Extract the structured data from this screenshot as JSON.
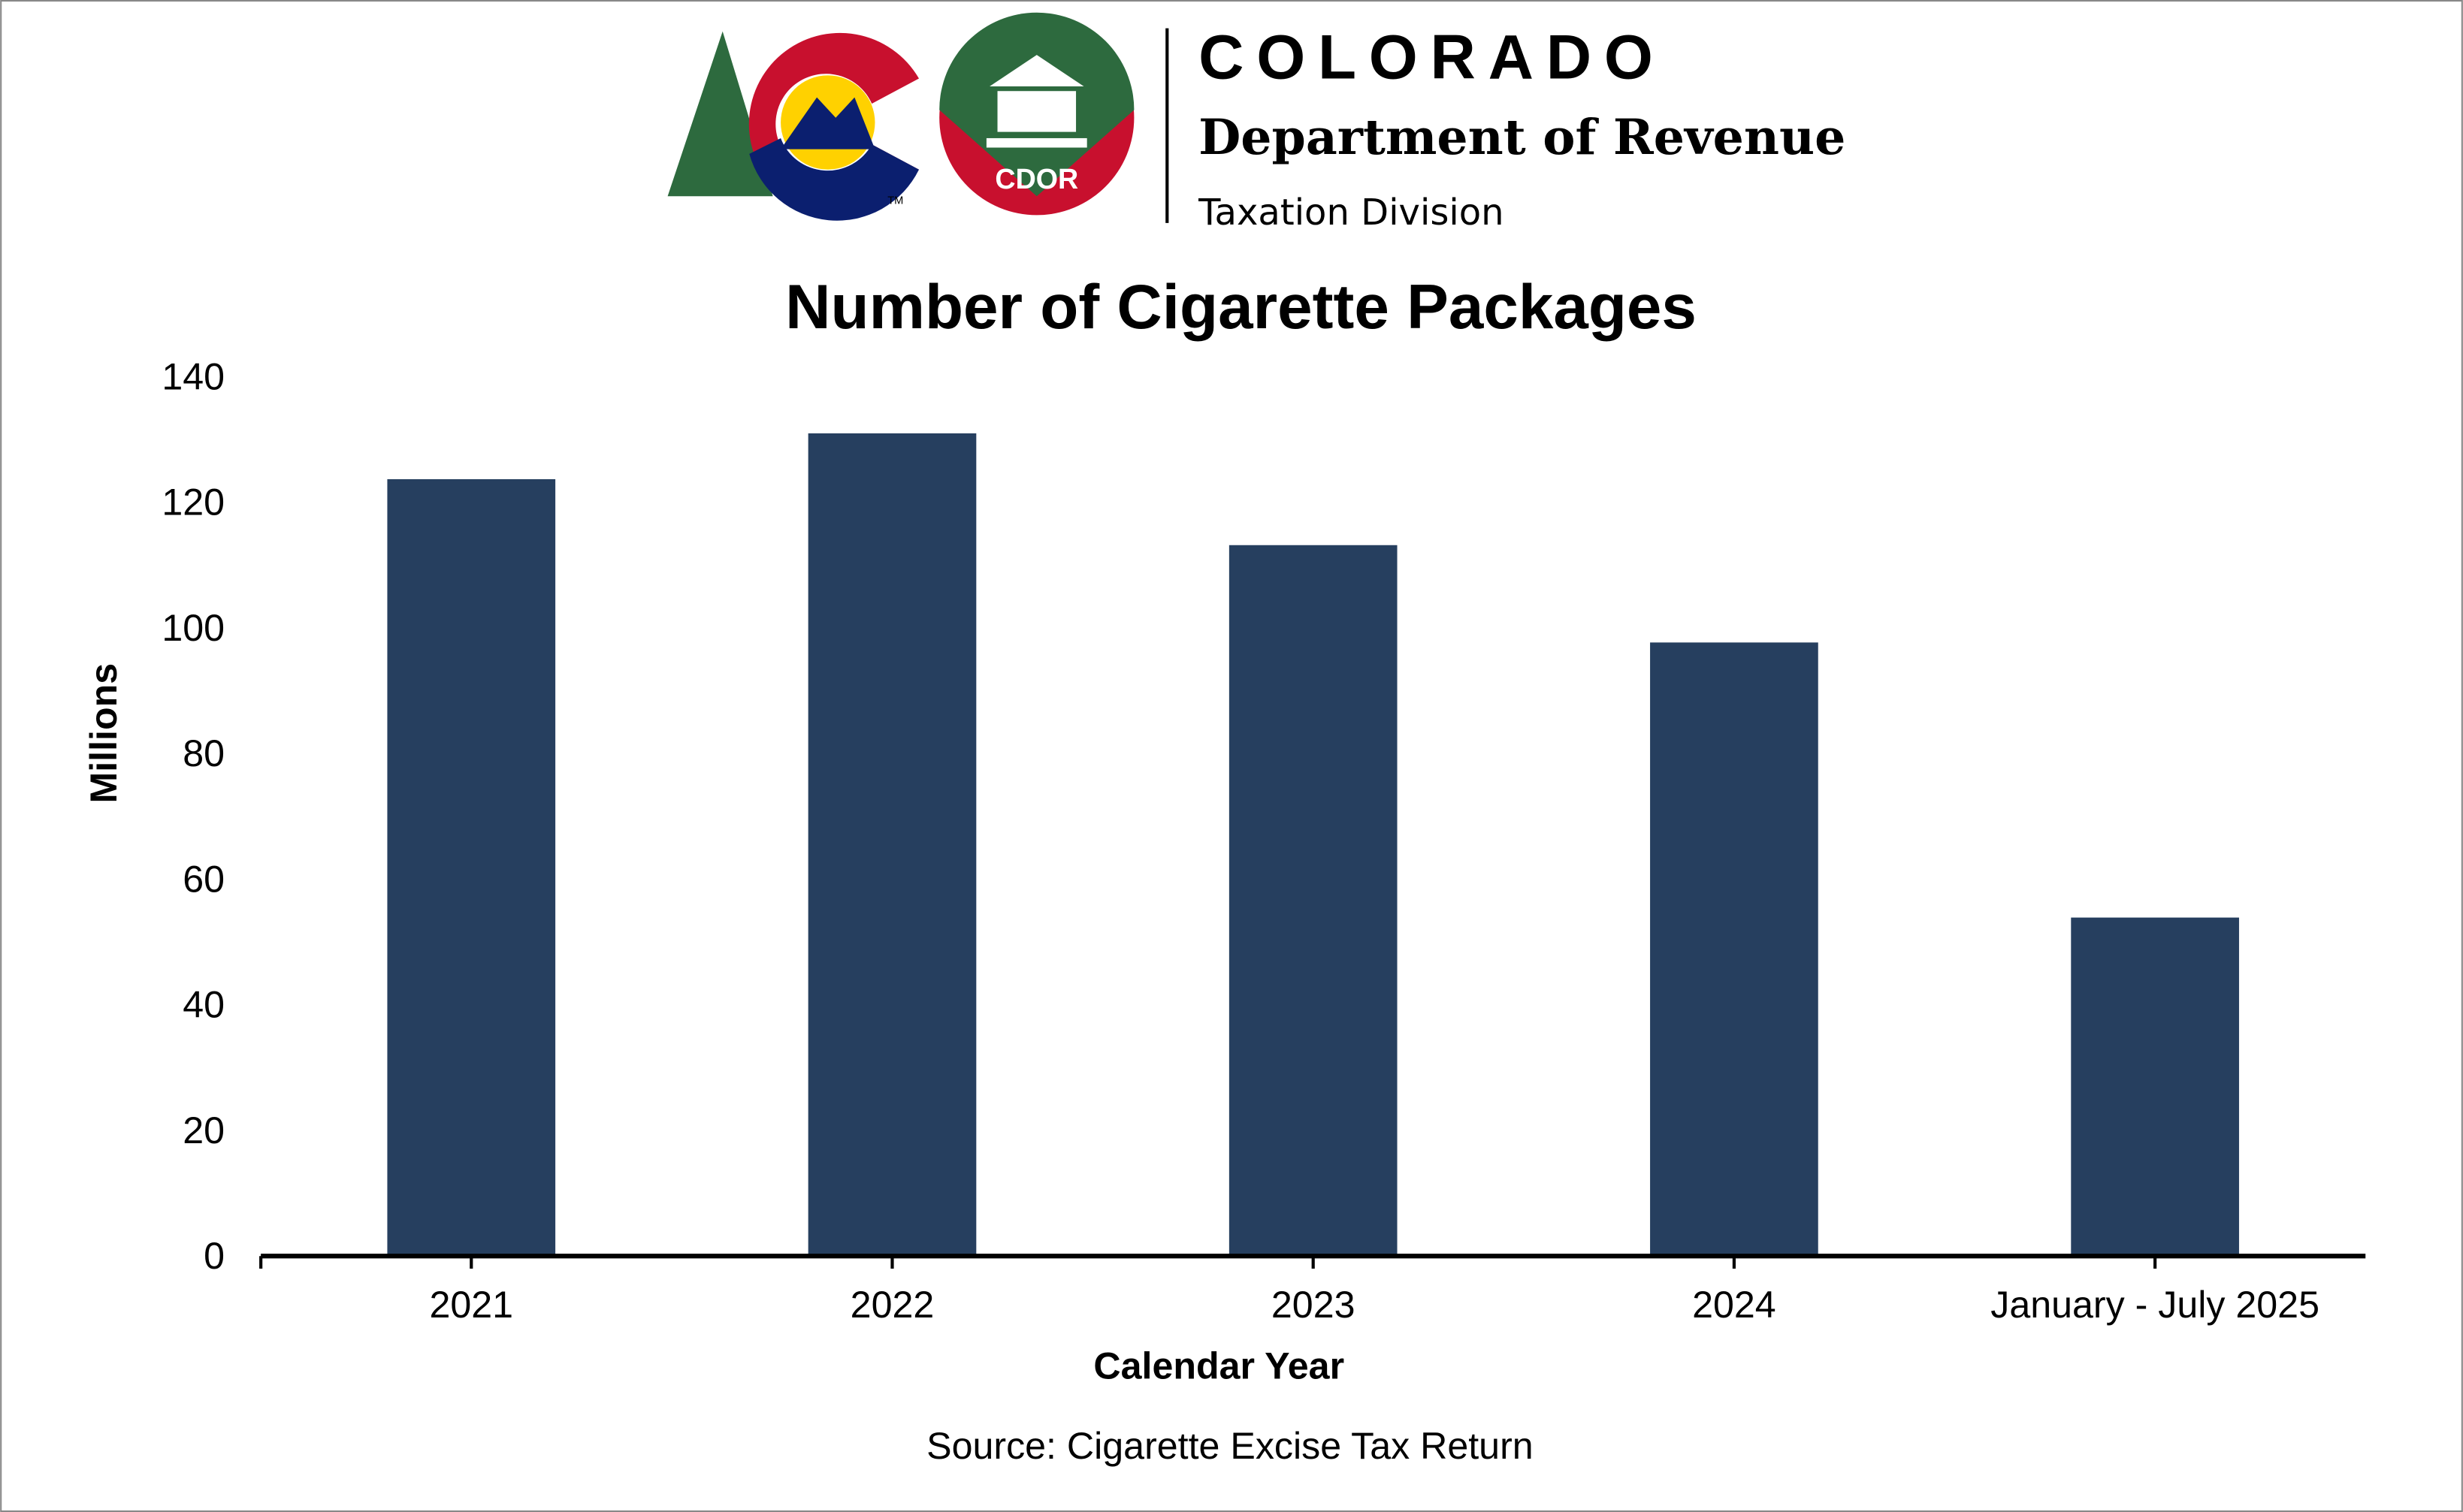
{
  "header": {
    "logo_text": "COLORADO",
    "department": "Department of Revenue",
    "division": "Taxation Division",
    "seal_text": "CDOR",
    "trademark": "TM"
  },
  "chart_data": {
    "type": "bar",
    "title": "Number of Cigarette Packages",
    "xlabel": "Calendar Year",
    "ylabel": "Millions",
    "categories": [
      "2021",
      "2022",
      "2023",
      "2024",
      "January - July 2025"
    ],
    "values": [
      123.7,
      131.0,
      113.2,
      97.7,
      53.9
    ],
    "ylim": [
      0,
      140
    ],
    "yticks": [
      0,
      20,
      40,
      60,
      80,
      100,
      120,
      140
    ],
    "grid": false,
    "bar_color": "#263f5f",
    "source": "Source: Cigarette Excise Tax Return"
  }
}
